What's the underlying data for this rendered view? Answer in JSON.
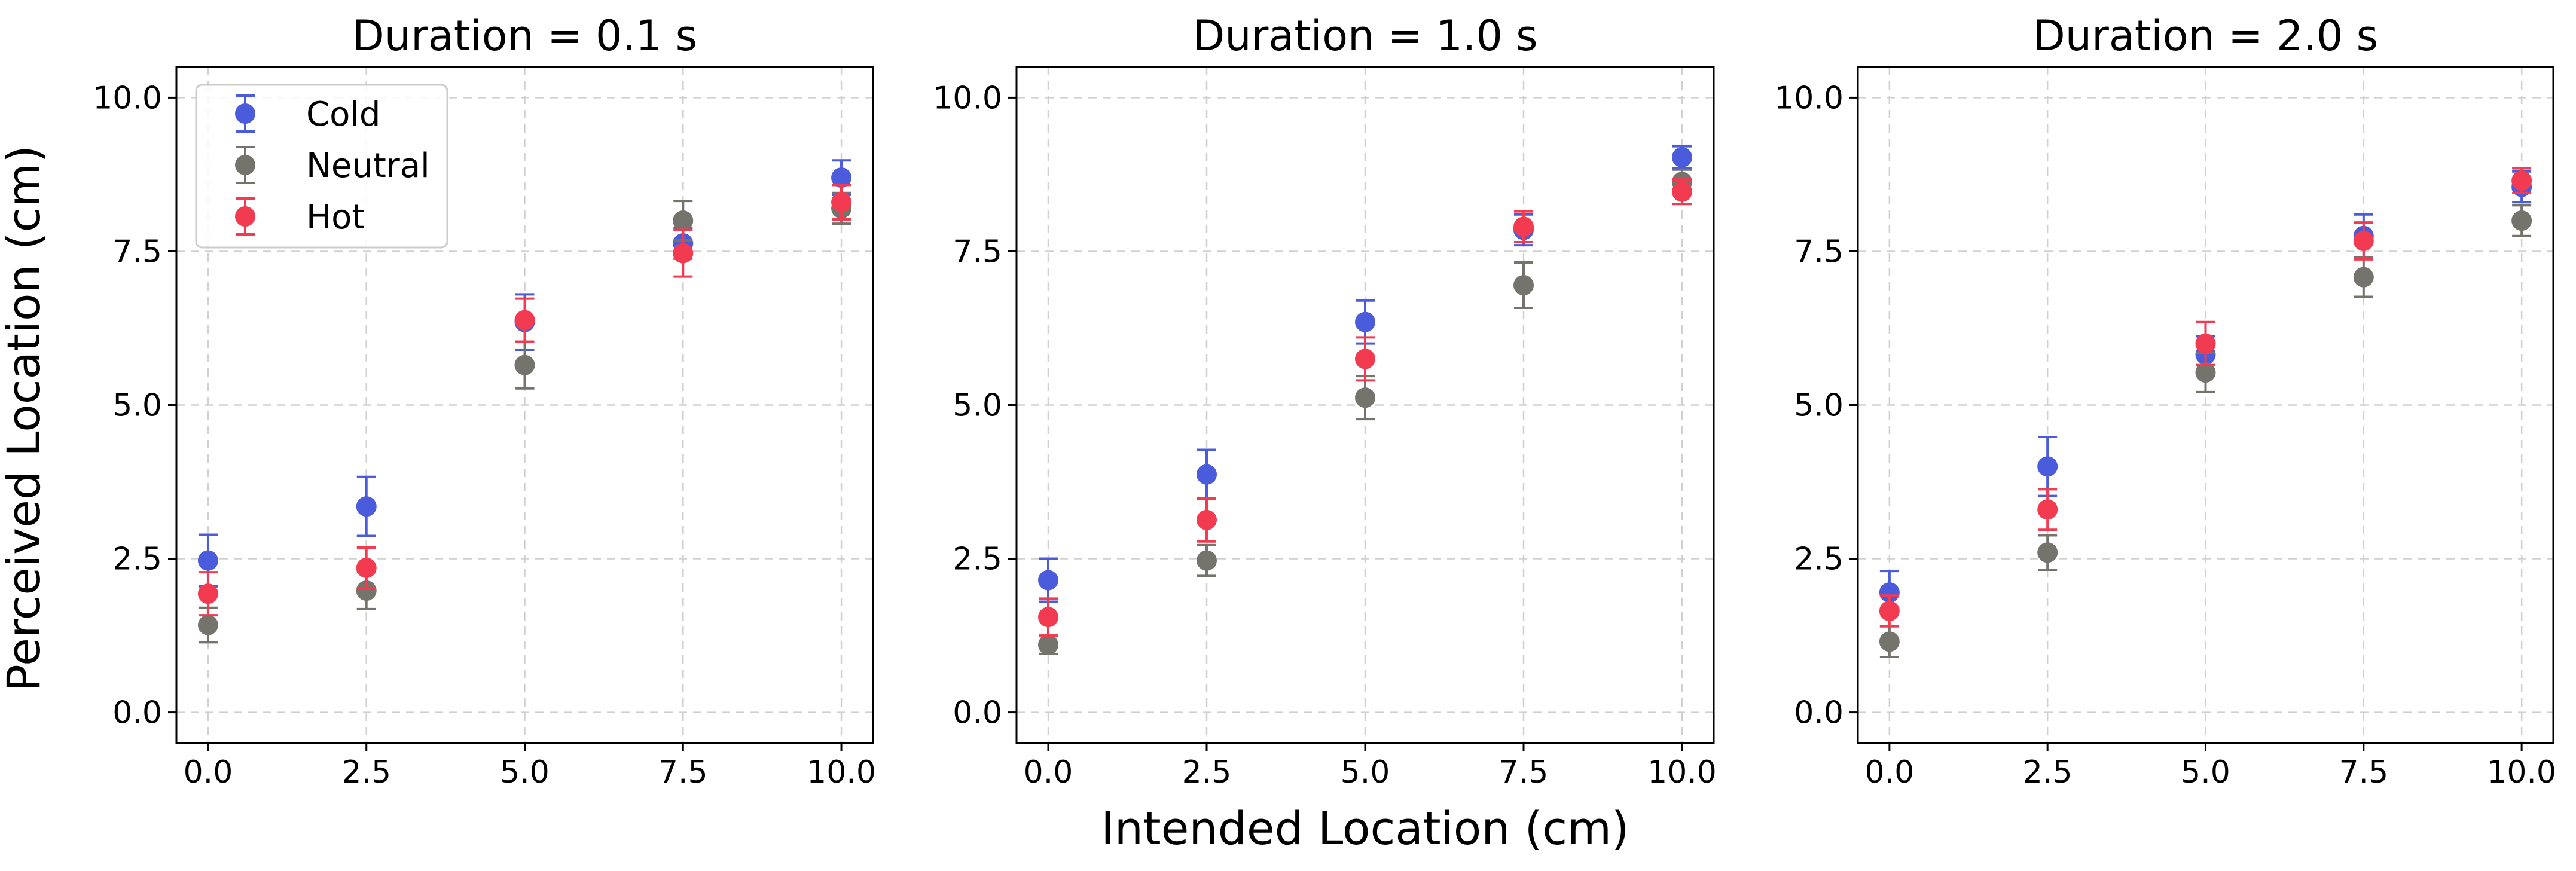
{
  "figure": {
    "xlabel": "Intended Location (cm)",
    "ylabel": "Perceived Location (cm)"
  },
  "legend": {
    "placement": "upper-left of first panel",
    "entries": [
      {
        "label": "Cold",
        "color": "#4a5bdc"
      },
      {
        "label": "Neutral",
        "color": "#75746c"
      },
      {
        "label": "Hot",
        "color": "#f23b50"
      }
    ]
  },
  "chart_data": [
    {
      "type": "scatter",
      "title": "Duration = 0.1 s",
      "xlim": [
        -0.5,
        10.5
      ],
      "ylim": [
        -0.5,
        10.5
      ],
      "xticks": [
        "0.0",
        "2.5",
        "5.0",
        "7.5",
        "10.0"
      ],
      "yticks": [
        "0.0",
        "2.5",
        "5.0",
        "7.5",
        "10.0"
      ],
      "grid": true,
      "series": [
        {
          "name": "Cold",
          "color": "#4a5bdc",
          "x": [
            0,
            2.5,
            5,
            7.5,
            10
          ],
          "y": [
            2.47,
            3.35,
            6.35,
            7.63,
            8.7
          ],
          "err": [
            0.42,
            0.48,
            0.45,
            0.25,
            0.28
          ]
        },
        {
          "name": "Neutral",
          "color": "#75746c",
          "x": [
            0,
            2.5,
            5,
            7.5,
            10
          ],
          "y": [
            1.42,
            1.98,
            5.65,
            8.0,
            8.2
          ],
          "err": [
            0.28,
            0.3,
            0.38,
            0.32,
            0.25
          ]
        },
        {
          "name": "Hot",
          "color": "#f23b50",
          "x": [
            0,
            2.5,
            5,
            7.5,
            10
          ],
          "y": [
            1.93,
            2.35,
            6.38,
            7.47,
            8.3
          ],
          "err": [
            0.35,
            0.33,
            0.35,
            0.38,
            0.28
          ]
        }
      ]
    },
    {
      "type": "scatter",
      "title": "Duration = 1.0 s",
      "xlim": [
        -0.5,
        10.5
      ],
      "ylim": [
        -0.5,
        10.5
      ],
      "xticks": [
        "0.0",
        "2.5",
        "5.0",
        "7.5",
        "10.0"
      ],
      "yticks": [
        "0.0",
        "2.5",
        "5.0",
        "7.5",
        "10.0"
      ],
      "grid": true,
      "series": [
        {
          "name": "Cold",
          "color": "#4a5bdc",
          "x": [
            0,
            2.5,
            5,
            7.5,
            10
          ],
          "y": [
            2.15,
            3.87,
            6.35,
            7.85,
            9.03
          ],
          "err": [
            0.35,
            0.4,
            0.35,
            0.25,
            0.18
          ]
        },
        {
          "name": "Neutral",
          "color": "#75746c",
          "x": [
            0,
            2.5,
            5,
            7.5,
            10
          ],
          "y": [
            1.1,
            2.47,
            5.12,
            6.95,
            8.63
          ],
          "err": [
            0.15,
            0.25,
            0.35,
            0.37,
            0.2
          ]
        },
        {
          "name": "Hot",
          "color": "#f23b50",
          "x": [
            0,
            2.5,
            5,
            7.5,
            10
          ],
          "y": [
            1.55,
            3.13,
            5.75,
            7.9,
            8.47
          ],
          "err": [
            0.3,
            0.35,
            0.35,
            0.25,
            0.2
          ]
        }
      ]
    },
    {
      "type": "scatter",
      "title": "Duration = 2.0 s",
      "xlim": [
        -0.5,
        10.5
      ],
      "ylim": [
        -0.5,
        10.5
      ],
      "xticks": [
        "0.0",
        "2.5",
        "5.0",
        "7.5",
        "10.0"
      ],
      "yticks": [
        "0.0",
        "2.5",
        "5.0",
        "7.5",
        "10.0"
      ],
      "grid": true,
      "series": [
        {
          "name": "Cold",
          "color": "#4a5bdc",
          "x": [
            0,
            2.5,
            5,
            7.5,
            10
          ],
          "y": [
            1.95,
            4.0,
            5.82,
            7.75,
            8.55
          ],
          "err": [
            0.35,
            0.48,
            0.3,
            0.35,
            0.25
          ]
        },
        {
          "name": "Neutral",
          "color": "#75746c",
          "x": [
            0,
            2.5,
            5,
            7.5,
            10
          ],
          "y": [
            1.15,
            2.6,
            5.53,
            7.08,
            8.0
          ],
          "err": [
            0.25,
            0.28,
            0.32,
            0.32,
            0.25
          ]
        },
        {
          "name": "Hot",
          "color": "#f23b50",
          "x": [
            0,
            2.5,
            5,
            7.5,
            10
          ],
          "y": [
            1.65,
            3.3,
            6.0,
            7.67,
            8.65
          ],
          "err": [
            0.25,
            0.33,
            0.35,
            0.3,
            0.2
          ]
        }
      ]
    }
  ]
}
